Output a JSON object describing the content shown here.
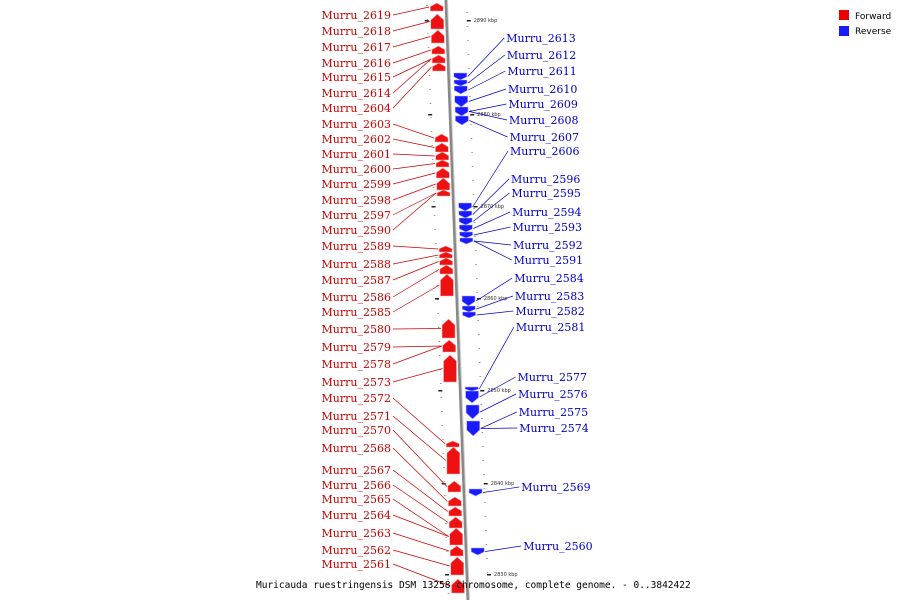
{
  "caption": "Muricauda ruestringensis DSM 13258 chromosome, complete genome. - 0..3842422",
  "legend": [
    {
      "key": "forward",
      "label": "Forward",
      "color": "#ee0000"
    },
    {
      "key": "reverse",
      "label": "Reverse",
      "color": "#1a1aff"
    }
  ],
  "colors": {
    "forward_label": "#cc0000",
    "reverse_label": "#0000cc",
    "forward_gene": "#ee1111",
    "reverse_gene": "#1a1aff",
    "axis": "#888888"
  },
  "kbp_marks": [
    "2890 kbp",
    "2880 kbp",
    "2870 kbp",
    "2860 kbp",
    "2850 kbp",
    "2840 kbp",
    "2830 kbp"
  ],
  "forward_genes": [
    "Murru_2619",
    "Murru_2618",
    "Murru_2617",
    "Murru_2616",
    "Murru_2615",
    "Murru_2614",
    "Murru_2604",
    "Murru_2603",
    "Murru_2602",
    "Murru_2601",
    "Murru_2600",
    "Murru_2599",
    "Murru_2598",
    "Murru_2597",
    "Murru_2590",
    "Murru_2589",
    "Murru_2588",
    "Murru_2587",
    "Murru_2586",
    "Murru_2585",
    "Murru_2580",
    "Murru_2579",
    "Murru_2578",
    "Murru_2573",
    "Murru_2572",
    "Murru_2571",
    "Murru_2570",
    "Murru_2568",
    "Murru_2567",
    "Murru_2566",
    "Murru_2565",
    "Murru_2564",
    "Murru_2563",
    "Murru_2562",
    "Murru_2561"
  ],
  "reverse_genes": [
    "Murru_2613",
    "Murru_2612",
    "Murru_2611",
    "Murru_2610",
    "Murru_2609",
    "Murru_2608",
    "Murru_2607",
    "Murru_2606",
    "Murru_2596",
    "Murru_2595",
    "Murru_2594",
    "Murru_2593",
    "Murru_2592",
    "Murru_2591",
    "Murru_2584",
    "Murru_2583",
    "Murru_2582",
    "Murru_2581",
    "Murru_2577",
    "Murru_2576",
    "Murru_2575",
    "Murru_2574",
    "Murru_2569",
    "Murru_2560"
  ]
}
